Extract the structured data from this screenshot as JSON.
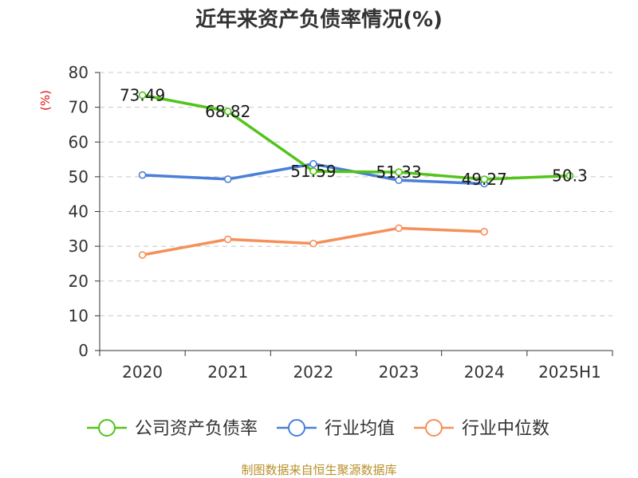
{
  "chart_data": {
    "type": "line",
    "title": "近年来资产负债率情况(%)",
    "unit": "(%)",
    "categories": [
      "2020",
      "2021",
      "2022",
      "2023",
      "2024",
      "2025H1"
    ],
    "ylim": [
      0,
      80
    ],
    "yticks": [
      0,
      10,
      20,
      30,
      40,
      50,
      60,
      70,
      80
    ],
    "grid": true,
    "legend_position": "bottom",
    "series": [
      {
        "name": "公司资产负债率",
        "color": "#52c41a",
        "values": [
          73.49,
          68.82,
          51.59,
          51.33,
          49.27,
          50.3
        ],
        "labels": [
          "73.49",
          "68.82",
          "51.59",
          "51.33",
          "49.27",
          "50.3"
        ]
      },
      {
        "name": "行业均值",
        "color": "#4a7fd8",
        "values": [
          50.5,
          49.3,
          53.7,
          49.0,
          48.0,
          null
        ]
      },
      {
        "name": "行业中位数",
        "color": "#f5905a",
        "values": [
          27.5,
          32.0,
          30.8,
          35.2,
          34.2,
          null
        ]
      }
    ]
  },
  "source": "制图数据来自恒生聚源数据库"
}
